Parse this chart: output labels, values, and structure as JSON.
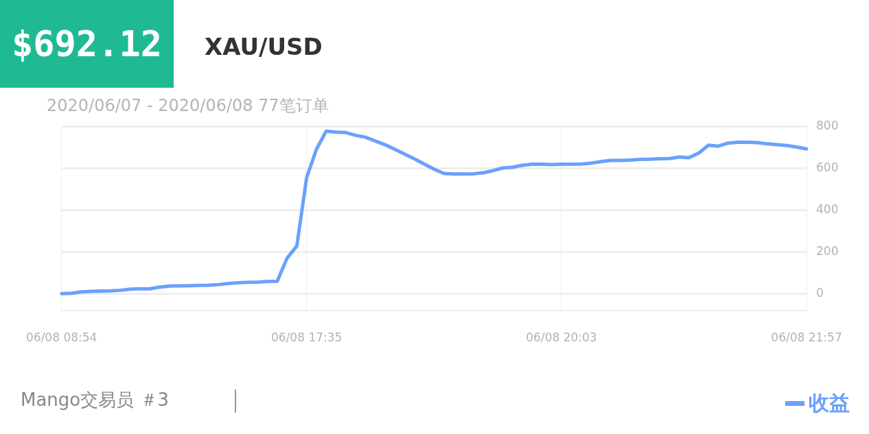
{
  "chart_data": {
    "type": "line",
    "title": "XAU/USD",
    "subtitle": "2020/06/07 - 2020/06/08  77笔订单",
    "annotations": [
      "$692.12",
      "Mango交易员 ＃3"
    ],
    "categories": [
      "06/08 08:54",
      null,
      null,
      null,
      null,
      null,
      null,
      null,
      null,
      null,
      null,
      null,
      null,
      null,
      null,
      null,
      null,
      null,
      null,
      null,
      null,
      null,
      null,
      null,
      null,
      "06/08 17:35",
      null,
      null,
      null,
      null,
      null,
      null,
      null,
      null,
      null,
      null,
      null,
      null,
      null,
      null,
      null,
      null,
      null,
      null,
      null,
      null,
      null,
      null,
      null,
      null,
      null,
      "06/08 20:03",
      null,
      null,
      null,
      null,
      null,
      null,
      null,
      null,
      null,
      null,
      null,
      null,
      null,
      null,
      null,
      null,
      null,
      null,
      null,
      null,
      null,
      null,
      null,
      null,
      "06/08 21:57"
    ],
    "series": [
      {
        "name": "收益",
        "color": "#6aa1fb",
        "values": [
          1,
          3,
          9,
          12,
          13,
          14,
          17,
          22,
          24,
          24,
          32,
          37,
          38,
          39,
          40,
          41,
          44,
          49,
          53,
          55,
          56,
          59,
          60,
          170,
          228,
          555,
          690,
          777,
          772,
          770,
          757,
          748,
          730,
          712,
          690,
          667,
          644,
          620,
          595,
          575,
          572,
          572,
          573,
          578,
          588,
          601,
          604,
          614,
          619,
          619,
          617,
          619,
          619,
          620,
          624,
          631,
          637,
          637,
          639,
          642,
          643,
          645,
          646,
          653,
          650,
          672,
          710,
          705,
          720,
          724,
          724,
          722,
          716,
          712,
          708,
          701,
          692
        ]
      }
    ],
    "ylim": [
      -80,
      800
    ],
    "yticks": [
      0,
      200,
      400,
      600,
      800
    ],
    "grid": true,
    "legend": "bottom right",
    "marker": "none",
    "line_style": "solid"
  }
}
